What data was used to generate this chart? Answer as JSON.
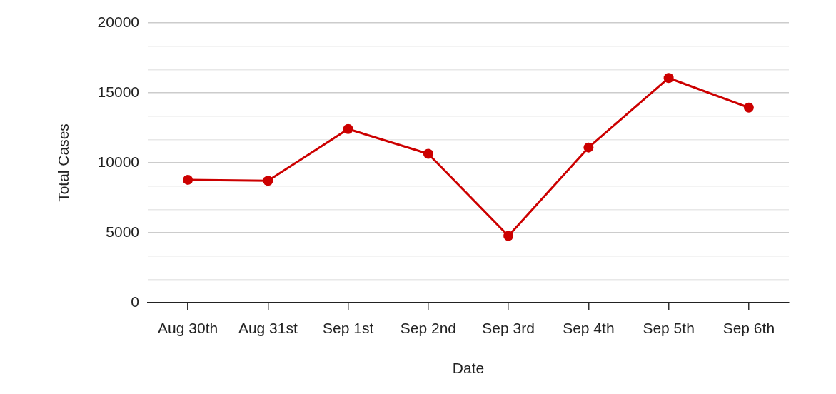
{
  "chart_data": {
    "type": "line",
    "xlabel": "Date",
    "ylabel": "Total Cases",
    "categories": [
      "Aug 30th",
      "Aug 31st",
      "Sep 1st",
      "Sep 2nd",
      "Sep 3rd",
      "Sep 4th",
      "Sep 5th",
      "Sep 6th"
    ],
    "series": [
      {
        "color": "#cc0000",
        "values": [
          8780,
          8710,
          12410,
          10640,
          4770,
          11090,
          16060,
          13940
        ]
      }
    ],
    "ylim": [
      0,
      20000
    ],
    "yticks": [
      0,
      {
        "value": 1666.67,
        "label": null
      },
      {
        "value": 3333.33,
        "label": null
      },
      5000,
      {
        "value": 6666.67,
        "label": null
      },
      {
        "value": 8333.33,
        "label": null
      },
      10000,
      {
        "value": 11666.67,
        "label": null
      },
      {
        "value": 13333.33,
        "label": null
      },
      15000,
      {
        "value": 16666.67,
        "label": null
      },
      {
        "value": 18333.33,
        "label": null
      },
      20000
    ],
    "grid": "y",
    "legend": false,
    "marker": "circle",
    "line_style": "solid"
  }
}
